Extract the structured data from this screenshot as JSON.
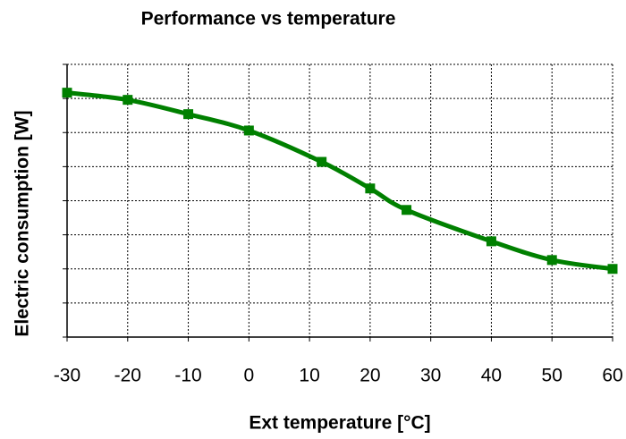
{
  "chart_data": {
    "type": "line",
    "title": "Performance vs temperature",
    "x_label": "Ext temperature [°C]",
    "y_label": "Electric consumption  [W]",
    "x": [
      -30,
      -20,
      -10,
      0,
      12,
      20,
      26,
      40,
      50,
      60
    ],
    "series": [
      {
        "color": "#008000",
        "values": [
          7.17,
          6.96,
          6.54,
          6.06,
          5.14,
          4.36,
          3.73,
          2.81,
          2.26,
          2.0
        ]
      }
    ],
    "xlim": [
      -30,
      60
    ],
    "xticks": [
      -30,
      -20,
      -10,
      0,
      10,
      20,
      30,
      40,
      50,
      60
    ],
    "ylim": [
      0,
      8
    ],
    "yticks": [
      0,
      1,
      2,
      3,
      4,
      5,
      6,
      7,
      8
    ],
    "grid": true,
    "smooth": true,
    "marker": "square",
    "ytick_labels": false
  }
}
